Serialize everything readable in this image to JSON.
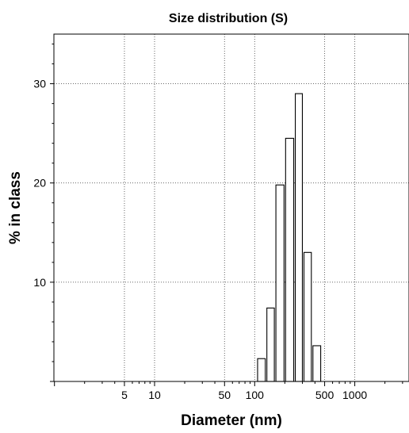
{
  "chart_data": {
    "type": "bar",
    "title": "Size distribution (S)",
    "xlabel": "Diameter (nm)",
    "ylabel": "% in class",
    "x_scale": "log",
    "xlim": [
      1,
      5000
    ],
    "ylim": [
      0,
      35
    ],
    "x_ticks": [
      5,
      10,
      50,
      100,
      500,
      1000
    ],
    "x_tick_labels": [
      "5",
      "10",
      "50",
      "100",
      "500",
      "1000"
    ],
    "y_ticks": [
      10,
      20,
      30
    ],
    "y_tick_labels": [
      "10",
      "20",
      "30"
    ],
    "grid": true,
    "bins": [
      {
        "from": 105,
        "to": 130,
        "value": 2.3
      },
      {
        "from": 130,
        "to": 160,
        "value": 7.4
      },
      {
        "from": 160,
        "to": 200,
        "value": 19.8
      },
      {
        "from": 200,
        "to": 250,
        "value": 24.5
      },
      {
        "from": 250,
        "to": 305,
        "value": 29.0
      },
      {
        "from": 305,
        "to": 375,
        "value": 13.0
      },
      {
        "from": 375,
        "to": 465,
        "value": 3.6
      }
    ],
    "colors": {
      "bar_fill": "#ffffff",
      "bar_stroke": "#000000",
      "grid": "#555555"
    }
  }
}
